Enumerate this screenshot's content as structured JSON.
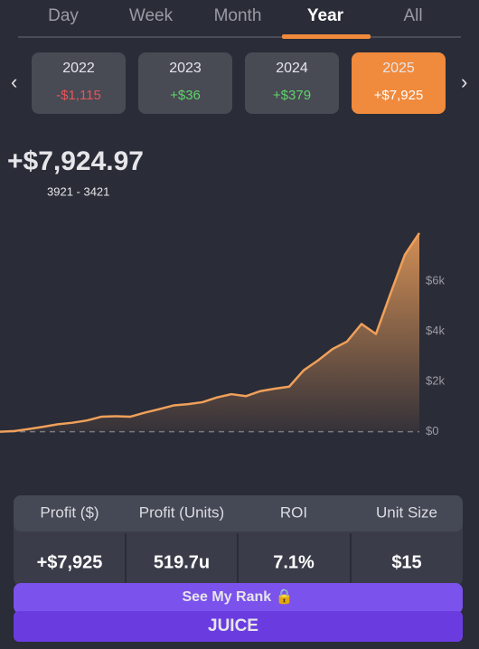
{
  "tabs": [
    "Day",
    "Week",
    "Month",
    "Year",
    "All"
  ],
  "active_tab": 3,
  "year_cards": [
    {
      "year": "2022",
      "profit": "-$1,115",
      "tone": "negative"
    },
    {
      "year": "2023",
      "profit": "+$36",
      "tone": "positive"
    },
    {
      "year": "2024",
      "profit": "+$379",
      "tone": "positive"
    },
    {
      "year": "2025",
      "profit": "+$7,925",
      "tone": "active"
    }
  ],
  "headline": {
    "amount": "+$7,924.97",
    "record": "3921 - 3421"
  },
  "chart_data": {
    "type": "area",
    "color": "#f0a05a",
    "values": [
      0,
      30,
      110,
      200,
      300,
      360,
      450,
      600,
      620,
      600,
      760,
      900,
      1050,
      1100,
      1180,
      1370,
      1500,
      1420,
      1620,
      1720,
      1800,
      2450,
      2850,
      3300,
      3600,
      4300,
      3900,
      5500,
      7060,
      7925
    ],
    "ylim": [
      -300,
      9000
    ],
    "yticks": [
      {
        "value": 0,
        "label": "$0"
      },
      {
        "value": 2000,
        "label": "$2k"
      },
      {
        "value": 4000,
        "label": "$4k"
      },
      {
        "value": 6000,
        "label": "$6k"
      }
    ]
  },
  "stats": {
    "headers": [
      "Profit ($)",
      "Profit (Units)",
      "ROI",
      "Unit Size"
    ],
    "values": [
      "+$7,925",
      "519.7u",
      "7.1%",
      "$15"
    ]
  },
  "buttons": {
    "rank": "See My Rank 🔒",
    "brand": "JUICE"
  }
}
